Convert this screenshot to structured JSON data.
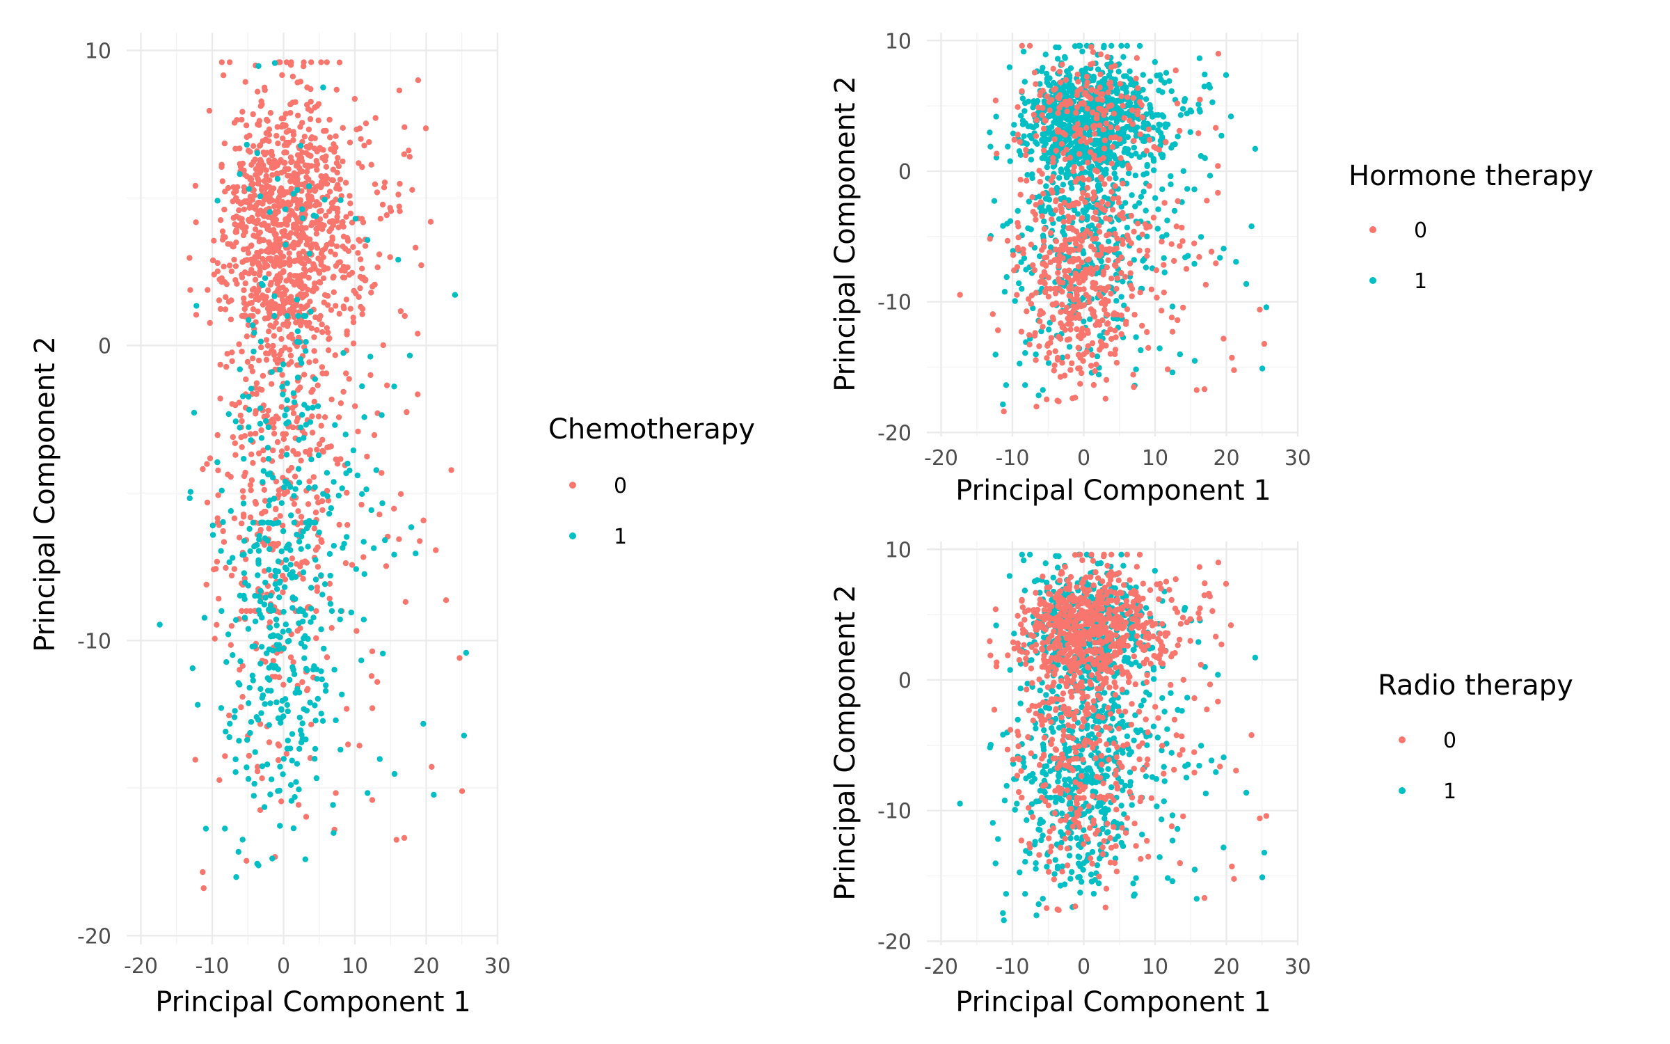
{
  "chart_data": [
    {
      "type": "scatter",
      "xlabel": "Principal Component 1",
      "ylabel": "Principal Component 2",
      "xlim": [
        -22,
        30
      ],
      "ylim": [
        -20.3,
        10.6
      ],
      "xticks": [
        -20,
        -10,
        0,
        10,
        20,
        30
      ],
      "yticks": [
        -20,
        -10,
        0,
        10
      ],
      "grid": true,
      "legend": {
        "title": "Chemotherapy",
        "position": "right",
        "entries": [
          "0",
          "1"
        ]
      },
      "colors": {
        "0": "#F8766D",
        "1": "#00BFC4"
      },
      "point_count": {
        "0": 1450,
        "1": 430
      },
      "series": [
        {
          "name": "0",
          "description": "dense core centered near (0, 4), broad spread to x=27 and down to y=-19"
        },
        {
          "name": "1",
          "description": "concentrated in lower region, x in [-10, 10], y in [-18, 0]"
        }
      ]
    },
    {
      "type": "scatter",
      "xlabel": "Principal Component 1",
      "ylabel": "Principal Component 2",
      "xlim": [
        -22,
        30
      ],
      "ylim": [
        -20.3,
        10.6
      ],
      "xticks": [
        -20,
        -10,
        0,
        10,
        20,
        30
      ],
      "yticks": [
        -20,
        -10,
        0,
        10
      ],
      "grid": true,
      "legend": {
        "title": "Hormone therapy",
        "position": "right",
        "entries": [
          "0",
          "1"
        ]
      },
      "colors": {
        "0": "#F8766D",
        "1": "#00BFC4"
      },
      "point_count": {
        "0": 600,
        "1": 1280
      },
      "series": [
        {
          "name": "0",
          "description": "mostly lower region, y below 0 down to -19"
        },
        {
          "name": "1",
          "description": "dense upper cluster near (0, 3), y mostly above -5"
        }
      ]
    },
    {
      "type": "scatter",
      "xlabel": "Principal Component 1",
      "ylabel": "Principal Component 2",
      "xlim": [
        -22,
        30
      ],
      "ylim": [
        -20.3,
        10.6
      ],
      "xticks": [
        -20,
        -10,
        0,
        10,
        20,
        30
      ],
      "yticks": [
        -20,
        -10,
        0,
        10
      ],
      "grid": true,
      "legend": {
        "title": "Radio therapy",
        "position": "right",
        "entries": [
          "0",
          "1"
        ]
      },
      "colors": {
        "0": "#F8766D",
        "1": "#00BFC4"
      },
      "point_count": {
        "0": 850,
        "1": 1030
      },
      "series": [
        {
          "name": "0",
          "description": "upper cluster near (0, 4)"
        },
        {
          "name": "1",
          "description": "spread throughout, dominant in lower region"
        }
      ]
    }
  ]
}
